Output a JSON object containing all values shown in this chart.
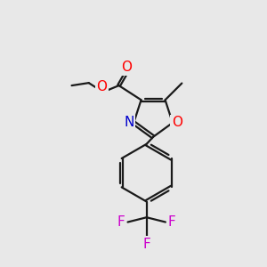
{
  "bg_color": "#e8e8e8",
  "bond_color": "#1a1a1a",
  "atom_colors": {
    "O": "#ff0000",
    "N": "#0000cc",
    "F": "#cc00cc"
  },
  "line_width": 1.6,
  "font_size_atom": 11,
  "font_size_small": 10
}
